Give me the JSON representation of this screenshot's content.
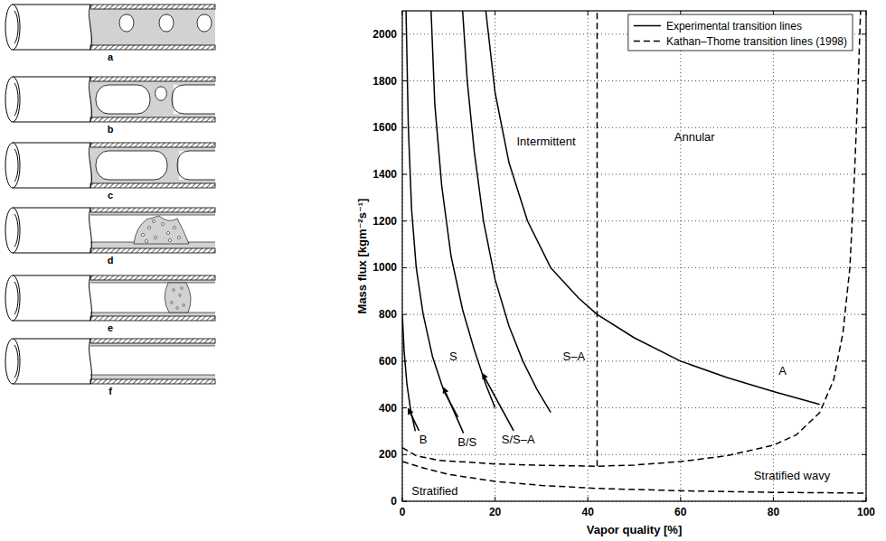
{
  "diagrams": [
    {
      "label": "a"
    },
    {
      "label": "b"
    },
    {
      "label": "c"
    },
    {
      "label": "d"
    },
    {
      "label": "e"
    },
    {
      "label": "f"
    }
  ],
  "chart_data": {
    "type": "line",
    "x_label": "Vapor quality [%]",
    "y_label": "Mass flux [kgm⁻²s⁻¹]",
    "xlim": [
      0,
      100
    ],
    "xticks": [
      0,
      20,
      40,
      60,
      80,
      100
    ],
    "ylim": [
      0,
      2100
    ],
    "yticks": [
      0,
      200,
      400,
      600,
      800,
      1000,
      1200,
      1400,
      1600,
      1800,
      2000
    ],
    "grid": true,
    "legend": "upper right",
    "series": [
      {
        "name": "Experimental transition lines",
        "color": "#000000",
        "line_style": "solid",
        "x": [
          0,
          0.4,
          1,
          1.8,
          2.8,
          null,
          0.8,
          1.3,
          2,
          3,
          4.5,
          6.5,
          9,
          12,
          null,
          6.2,
          7,
          8.5,
          10.5,
          13,
          15.5,
          18,
          20,
          null,
          13,
          14,
          15.5,
          17.5,
          20,
          23,
          26,
          29,
          32,
          null,
          18,
          20,
          23,
          27,
          32,
          38,
          42,
          50,
          60,
          70,
          80,
          90
        ],
        "values": [
          800,
          640,
          500,
          390,
          300,
          null,
          2100,
          1600,
          1250,
          1000,
          800,
          620,
          470,
          360,
          null,
          2100,
          1700,
          1350,
          1050,
          820,
          650,
          500,
          400,
          null,
          2100,
          1800,
          1500,
          1200,
          950,
          750,
          600,
          480,
          380,
          null,
          2100,
          1750,
          1450,
          1200,
          1000,
          870,
          800,
          700,
          600,
          530,
          470,
          415
        ]
      },
      {
        "name": "Kathan–Thome transition lines (1998)",
        "color": "#000000",
        "line_style": "dashed",
        "x": [
          42,
          42,
          null,
          0,
          3,
          8,
          20,
          30,
          42,
          50,
          60,
          70,
          80,
          85,
          90,
          93,
          95,
          96.5,
          97.5,
          98.3,
          98.8,
          null,
          0,
          5,
          10,
          20,
          30,
          42,
          60,
          80,
          100
        ],
        "values": [
          150,
          2100,
          null,
          230,
          195,
          175,
          160,
          154,
          150,
          155,
          170,
          195,
          240,
          285,
          380,
          520,
          720,
          1000,
          1400,
          1800,
          2100,
          null,
          170,
          140,
          115,
          85,
          68,
          55,
          45,
          38,
          35
        ]
      }
    ],
    "annotations": [
      {
        "text": "Intermittent",
        "x": 31,
        "y": 1540
      },
      {
        "text": "Annular",
        "x": 63,
        "y": 1560
      },
      {
        "text": "S",
        "x": 11,
        "y": 620
      },
      {
        "text": "S–A",
        "x": 37,
        "y": 620
      },
      {
        "text": "A",
        "x": 82,
        "y": 560
      },
      {
        "text": "B",
        "x": 4.5,
        "y": 265,
        "arrow_to": [
          1.2,
          400
        ]
      },
      {
        "text": "B/S",
        "x": 14,
        "y": 255,
        "arrow_to": [
          8.8,
          490
        ]
      },
      {
        "text": "S/S–A",
        "x": 25,
        "y": 265,
        "arrow_to": [
          17.2,
          550
        ]
      },
      {
        "text": "Stratified",
        "x": 7,
        "y": 45
      },
      {
        "text": "Stratified wavy",
        "x": 84,
        "y": 110
      }
    ]
  }
}
